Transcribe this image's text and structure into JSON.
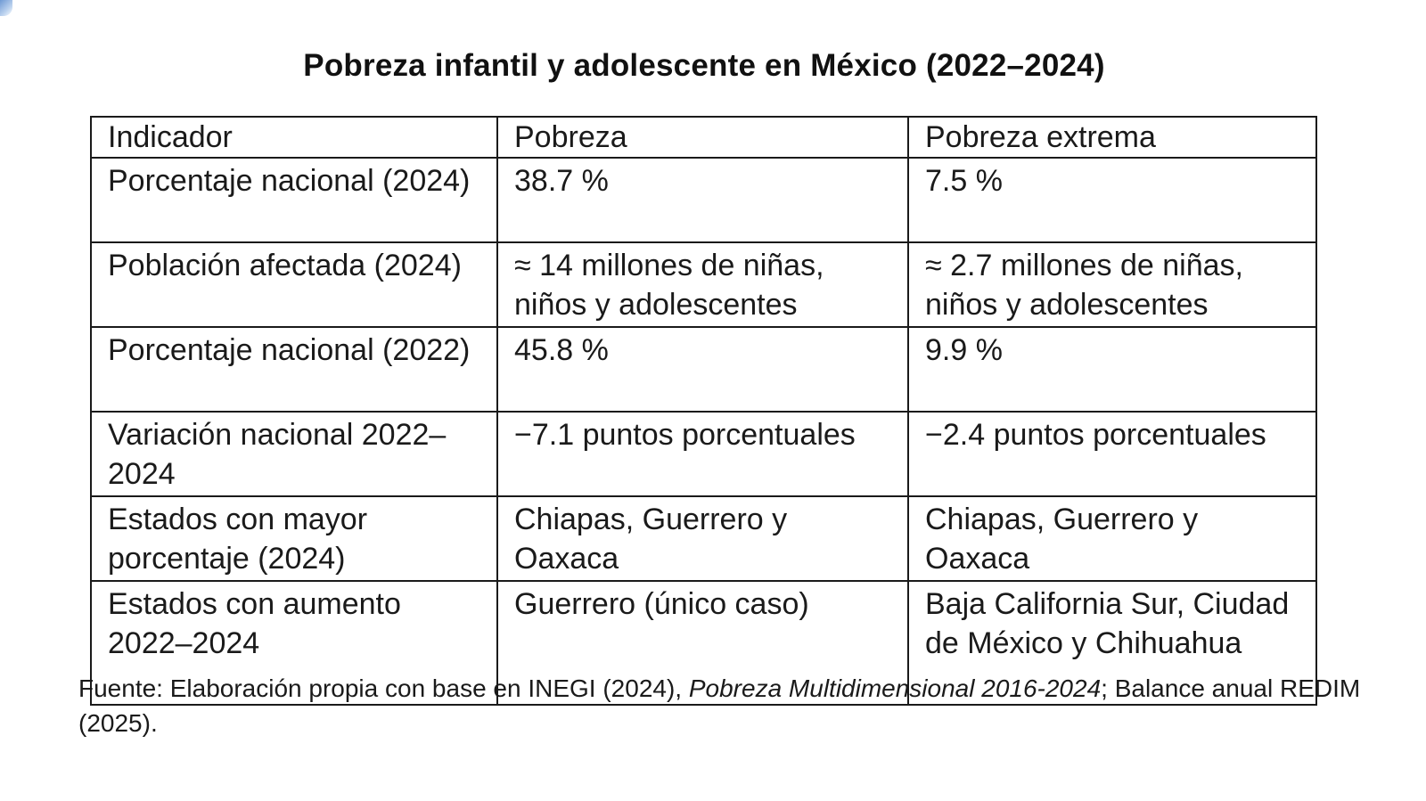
{
  "title": "Pobreza infantil y adolescente en México (2022–2024)",
  "table": {
    "headers": [
      "Indicador",
      "Pobreza",
      "Pobreza extrema"
    ],
    "rows": [
      [
        "Porcentaje nacional (2024)",
        "38.7 %",
        "7.5 %"
      ],
      [
        "Población afectada (2024)",
        "≈ 14 millones de niñas, niños y adolescentes",
        "≈ 2.7 millones de niñas, niños y adolescentes"
      ],
      [
        "Porcentaje nacional (2022)",
        "45.8 %",
        "9.9 %"
      ],
      [
        "Variación nacional 2022–2024",
        "−7.1 puntos porcentuales",
        "−2.4 puntos porcentuales"
      ],
      [
        "Estados con mayor porcentaje (2024)",
        "Chiapas, Guerrero y Oaxaca",
        "Chiapas, Guerrero y Oaxaca"
      ],
      [
        "Estados con aumento 2022–2024",
        "Guerrero (único caso)",
        "Baja California Sur, Ciudad de México y Chihuahua"
      ]
    ]
  },
  "source": {
    "prefix": "Fuente: Elaboración propia con base en INEGI (2024), ",
    "italic": "Pobreza Multidimensional 2016-2024",
    "suffix": "; Balance anual REDIM (2025)."
  }
}
